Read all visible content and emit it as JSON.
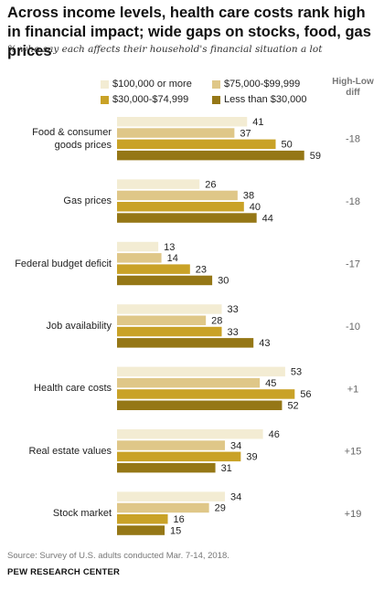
{
  "title": "Across income levels, health care costs rank high in financial impact; wide gaps on stocks, food, gas prices",
  "subtitle": "% who say each affects their household's financial situation a lot",
  "diff_header": "High-Low diff",
  "source": "Source: Survey of U.S. adults conducted Mar. 7-14, 2018.",
  "brand": "PEW RESEARCH CENTER",
  "colors": {
    "series": [
      "#f3ecd3",
      "#dfc788",
      "#c9a227",
      "#957716"
    ]
  },
  "chart_data": {
    "type": "bar",
    "orientation": "horizontal",
    "title": "Across income levels, health care costs rank high in financial impact; wide gaps on stocks, food, gas prices",
    "subtitle": "% who say each affects their household's financial situation a lot",
    "categories": [
      [
        "Food & consumer",
        "goods prices"
      ],
      [
        "Gas prices"
      ],
      [
        "Federal budget deficit"
      ],
      [
        "Job availability"
      ],
      [
        "Health care costs"
      ],
      [
        "Real estate values"
      ],
      [
        "Stock market"
      ]
    ],
    "series": [
      {
        "name": "$100,000 or more",
        "values": [
          41,
          26,
          13,
          33,
          53,
          46,
          34
        ]
      },
      {
        "name": "$75,000-$99,999",
        "values": [
          37,
          38,
          14,
          28,
          45,
          34,
          29
        ]
      },
      {
        "name": "$30,000-$74,999",
        "values": [
          50,
          40,
          23,
          33,
          56,
          39,
          16
        ]
      },
      {
        "name": "Less than $30,000",
        "values": [
          59,
          44,
          30,
          43,
          52,
          31,
          15
        ]
      }
    ],
    "diff": [
      "-18",
      "-18",
      "-17",
      "-10",
      "+1",
      "+15",
      "+19"
    ],
    "legend_position": "top",
    "grid": false
  }
}
